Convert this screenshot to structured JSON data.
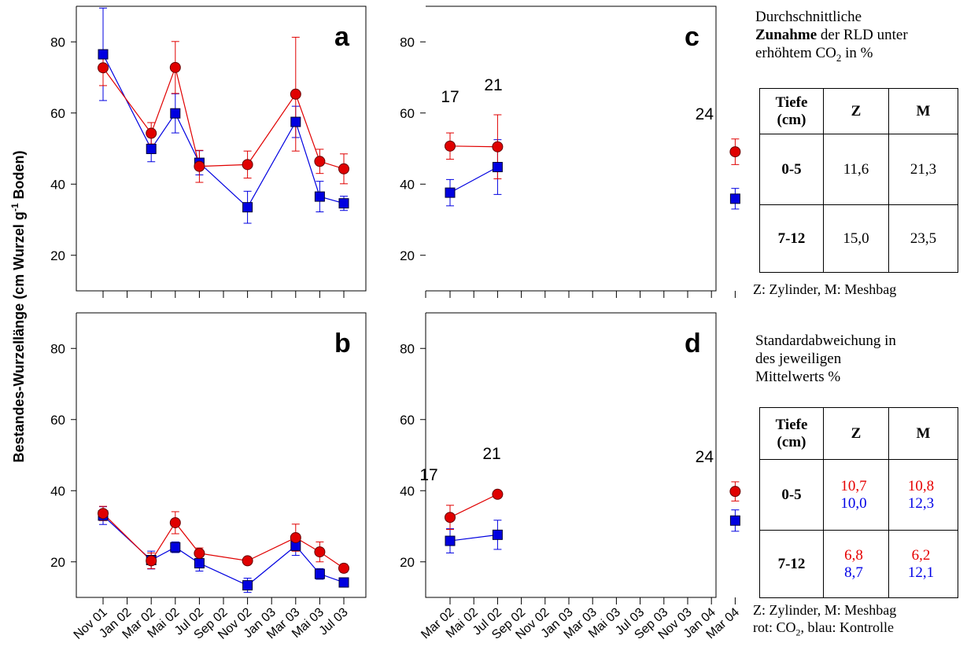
{
  "y_axis_label": "Bestandes-Wurzellänge (cm Wurzel g",
  "y_axis_label_sup": "-1",
  "y_axis_label_end": " Boden)",
  "colors": {
    "co2": "#e00000",
    "control": "#0000e0"
  },
  "chart_data": [
    {
      "panel": "a",
      "type": "line",
      "x": [
        "Nov 01",
        "Mar 02",
        "Mai 02",
        "Jul 02",
        "Nov 02",
        "Mar 03",
        "Mai 03",
        "Jul 03"
      ],
      "series": [
        {
          "values": [
            72.7,
            54.3,
            72.8,
            45.0,
            45.5,
            65.3,
            46.4,
            44.3
          ],
          "err": [
            5,
            3,
            7.3,
            4.5,
            3.8,
            16,
            3.4,
            4.2
          ],
          "marker": "circle",
          "color": "#e00000"
        },
        {
          "values": [
            76.5,
            49.9,
            59.9,
            46.0,
            33.5,
            57.5,
            36.5,
            34.6
          ],
          "err": [
            13,
            3.6,
            5.5,
            3.4,
            4.5,
            4.4,
            4.3,
            2
          ]
        }
      ],
      "ylim": [
        10,
        90
      ],
      "yticks": [
        20,
        40,
        60,
        80
      ]
    },
    {
      "panel": "b",
      "type": "line",
      "x": [
        "Nov 01",
        "Mar 02",
        "Mai 02",
        "Jul 02",
        "Nov 02",
        "Mar 03",
        "Mai 03",
        "Jul 03"
      ],
      "series": [
        {
          "values": [
            33.6,
            20.3,
            31.0,
            22.4,
            20.3,
            26.8,
            22.8,
            18.2
          ],
          "err": [
            2,
            2.2,
            3.1,
            1.5,
            1,
            3.8,
            2.8,
            1.1
          ],
          "marker": "circle",
          "color": "#e00000"
        },
        {
          "values": [
            33.0,
            20.5,
            24.1,
            19.6,
            13.4,
            24.5,
            16.6,
            14.2
          ],
          "err": [
            2.5,
            2.5,
            1.5,
            2.2,
            2,
            2.7,
            1.5,
            1
          ]
        }
      ],
      "ylim": [
        10,
        90
      ],
      "yticks": [
        20,
        40,
        60,
        80
      ]
    },
    {
      "panel": "c",
      "type": "line",
      "x": [
        "Mar 02",
        "Jul 02",
        "Mar 04"
      ],
      "labels": [
        "17",
        "21",
        "24"
      ],
      "series": [
        {
          "values": [
            50.7,
            50.5,
            49.1
          ],
          "err": [
            3.7,
            9,
            3.6
          ],
          "marker": "circle",
          "color": "#e00000"
        },
        {
          "values": [
            37.6,
            44.8,
            35.9
          ],
          "err": [
            3.7,
            7.7,
            2.9
          ]
        }
      ],
      "ylim": [
        10,
        90
      ],
      "yticks": [
        20,
        40,
        60,
        80
      ]
    },
    {
      "panel": "d",
      "type": "line",
      "x": [
        "Mar 02",
        "Jul 02",
        "Mar 04"
      ],
      "labels": [
        "17",
        "21",
        "24"
      ],
      "series": [
        {
          "values": [
            32.5,
            39.0,
            39.8
          ],
          "err": [
            3.4,
            0.5,
            2.7
          ],
          "marker": "circle",
          "color": "#e00000"
        },
        {
          "values": [
            25.9,
            27.6,
            31.6
          ],
          "err": [
            3.4,
            4.1,
            3
          ]
        }
      ],
      "ylim": [
        10,
        90
      ],
      "yticks": [
        20,
        40,
        60,
        80
      ]
    }
  ],
  "x_ticks_left": [
    "Nov 01",
    "Jan 02",
    "Mar 02",
    "Mai 02",
    "Jul 02",
    "Sep 02",
    "Nov 02",
    "Jan 03",
    "Mar 03",
    "Mai 03",
    "Jul 03"
  ],
  "x_ticks_right": [
    "Mar 02",
    "Mai 02",
    "Jul 02",
    "Sep 02",
    "Nov 02",
    "Jan 03",
    "Mar 03",
    "Mai 03",
    "Jul 03",
    "Sep 03",
    "Nov 03",
    "Jan 04",
    "Mar 04"
  ],
  "table1": {
    "title_1": "Durchschnittliche",
    "title_bold": "Zunahme",
    "title_2": " der RLD unter",
    "title_3": "erhöhtem CO",
    "title_3_sub": "2",
    "title_3_end": " in %",
    "head": [
      "Tiefe (cm)",
      "Z",
      "M"
    ],
    "rows": [
      [
        "0-5",
        "11,6",
        "21,3"
      ],
      [
        "7-12",
        "15,0",
        "23,5"
      ]
    ],
    "note": "Z: Zylinder, M: Meshbag"
  },
  "table2": {
    "title_1": "Standardabweichung in",
    "title_2": "des jeweiligen",
    "title_3": "Mittelwerts %",
    "head": [
      "Tiefe (cm)",
      "Z",
      "M"
    ],
    "rows": [
      {
        "depth": "0-5",
        "z_red": "10,7",
        "z_blue": "10,0",
        "m_red": "10,8",
        "m_blue": "12,3"
      },
      {
        "depth": "7-12",
        "z_red": "6,8",
        "z_blue": "8,7",
        "m_red": "6,2",
        "m_blue": "12,1"
      }
    ],
    "note_1": "Z: Zylinder, M: Meshbag",
    "note_2": "rot: CO",
    "note_2_sub": "2",
    "note_2_end": ", blau: Kontrolle"
  }
}
